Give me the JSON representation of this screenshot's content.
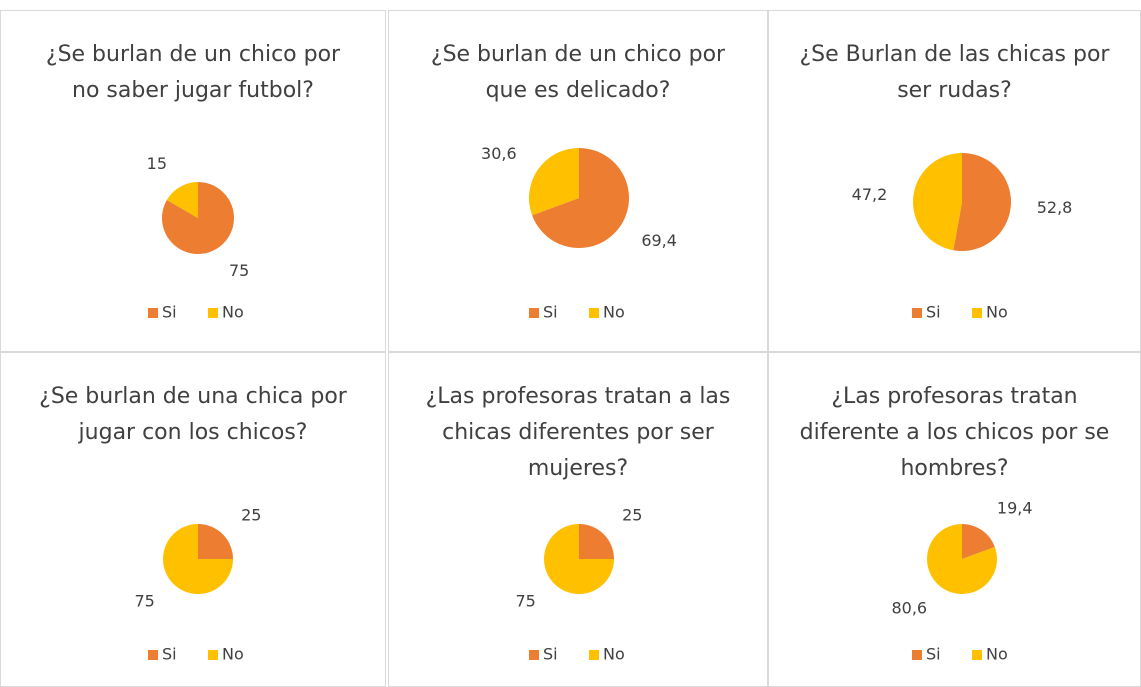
{
  "chart_data": [
    {
      "type": "pie",
      "title": "¿Se burlan de un chico por no saber jugar futbol?",
      "categories": [
        "Si",
        "No"
      ],
      "values": [
        75,
        15
      ],
      "colors": [
        "#ed7d31",
        "#ffc000"
      ],
      "legend": "bottom"
    },
    {
      "type": "pie",
      "title": "¿Se burlan de un chico por que es delicado?",
      "categories": [
        "Si",
        "No"
      ],
      "values": [
        69.4,
        30.6
      ],
      "value_labels": [
        "69,4",
        "30,6"
      ],
      "colors": [
        "#ed7d31",
        "#ffc000"
      ],
      "legend": "bottom"
    },
    {
      "type": "pie",
      "title": "¿Se Burlan de las chicas por ser rudas?",
      "categories": [
        "Si",
        "No"
      ],
      "values": [
        52.8,
        47.2
      ],
      "value_labels": [
        "52,8",
        "47,2"
      ],
      "colors": [
        "#ed7d31",
        "#ffc000"
      ],
      "legend": "bottom"
    },
    {
      "type": "pie",
      "title": "¿Se burlan de una chica por jugar con los chicos?",
      "categories": [
        "Si",
        "No"
      ],
      "values": [
        25,
        75
      ],
      "colors": [
        "#ed7d31",
        "#ffc000"
      ],
      "legend": "bottom"
    },
    {
      "type": "pie",
      "title": "¿Las profesoras tratan a las chicas diferentes por ser mujeres?",
      "categories": [
        "Si",
        "No"
      ],
      "values": [
        25,
        75
      ],
      "colors": [
        "#ed7d31",
        "#ffc000"
      ],
      "legend": "bottom"
    },
    {
      "type": "pie",
      "title": "¿Las profesoras tratan diferente a los chicos por se hombres?",
      "categories": [
        "Si",
        "No"
      ],
      "values": [
        19.4,
        80.6
      ],
      "value_labels": [
        "19,4",
        "80,6"
      ],
      "colors": [
        "#ed7d31",
        "#ffc000"
      ],
      "legend": "bottom"
    }
  ]
}
